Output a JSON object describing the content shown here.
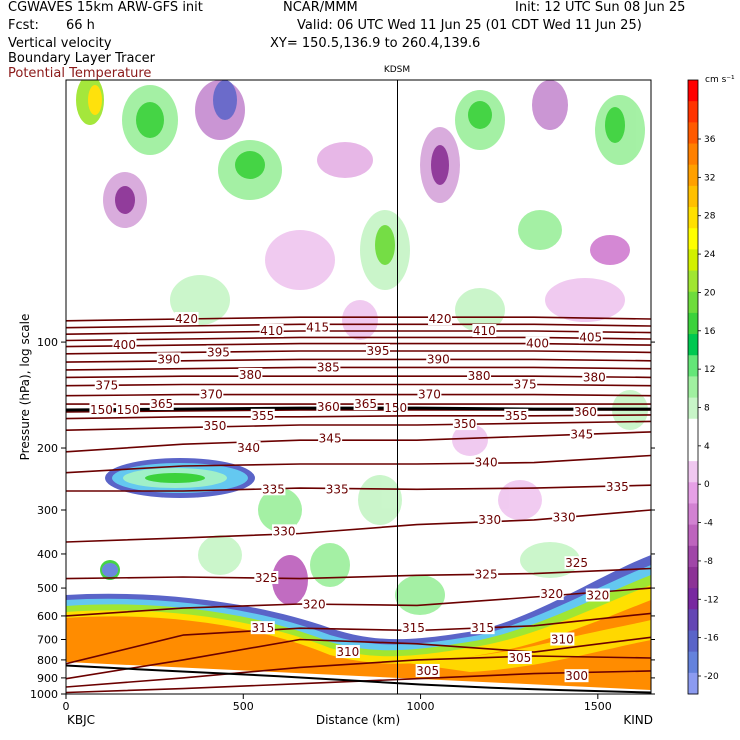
{
  "header": {
    "model": "CGWAVES 15km ARW-GFS init",
    "org": "NCAR/MMM",
    "init": "Init: 12 UTC Sun 08 Jun 25",
    "fcst_label": "Fcst:",
    "fcst_value": "66 h",
    "valid": "Valid: 06 UTC Wed 11 Jun 25 (01 CDT Wed 11 Jun 25)",
    "field1": "Vertical velocity",
    "xy": "XY= 150.5,136.9 to 260.4,139.6",
    "field2": "Boundary Layer Tracer",
    "field3": "Potential Temperature"
  },
  "colors": {
    "theta": "#6b0000",
    "bl_tracer": "#ff8c00",
    "header_red": "#8b1a1a"
  },
  "chart_data": {
    "type": "heatmap",
    "xlabel": "Distance (km)",
    "ylabel": "Pressure (hPa), log scale",
    "xlim": [
      0,
      1650
    ],
    "ylim": [
      1000,
      18
    ],
    "log_y": true,
    "x_ticks": [
      0,
      500,
      1000,
      1500
    ],
    "y_ticks": [
      100,
      200,
      300,
      400,
      500,
      600,
      700,
      800,
      900,
      1000
    ],
    "station_left": "KBJC",
    "station_right": "KIND",
    "station_mid": "KDSM",
    "station_mid_x": 935,
    "colorbar": {
      "unit": "cm s⁻¹",
      "labels": [
        "36",
        "32",
        "28",
        "24",
        "20",
        "16",
        "12",
        "8",
        "4",
        "0",
        "-4",
        "-8",
        "-12",
        "-16",
        "-20"
      ],
      "colors": [
        "#ff0000",
        "#ff3300",
        "#ff5a00",
        "#ff8000",
        "#ffa000",
        "#ffc000",
        "#ffe000",
        "#ffff00",
        "#d2f000",
        "#a0e632",
        "#6edc3c",
        "#3cd23c",
        "#00c850",
        "#64e678",
        "#a0f0a0",
        "#c8f5c8",
        "#ffffff",
        "#ffffff",
        "#f0c8f0",
        "#e6a0e6",
        "#d282d2",
        "#be64be",
        "#a046a8",
        "#8c3296",
        "#7828a0",
        "#6446b4",
        "#5a64c8",
        "#6482dc",
        "#8c9bf0"
      ]
    },
    "isentropes": [
      {
        "theta": 300,
        "p": [
          990,
          965,
          935,
          905,
          875,
          860
        ]
      },
      {
        "theta": 305,
        "p": [
          955,
          900,
          840,
          800,
          780,
          790
        ]
      },
      {
        "theta": 310,
        "p": [
          905,
          800,
          700,
          720,
          760,
          690
        ]
      },
      {
        "theta": 315,
        "p": [
          820,
          680,
          650,
          660,
          640,
          590
        ]
      },
      {
        "theta": 320,
        "p": [
          600,
          570,
          555,
          560,
          530,
          500
        ]
      },
      {
        "theta": 325,
        "p": [
          470,
          465,
          470,
          460,
          455,
          440
        ]
      },
      {
        "theta": 330,
        "p": [
          370,
          360,
          350,
          330,
          320,
          300
        ]
      },
      {
        "theta": 335,
        "p": [
          265,
          265,
          260,
          262,
          260,
          255
        ]
      },
      {
        "theta": 340,
        "p": [
          235,
          225,
          222,
          222,
          220,
          210
        ]
      },
      {
        "theta": 345,
        "p": [
          205,
          195,
          190,
          190,
          185,
          180
        ]
      },
      {
        "theta": 350,
        "p": [
          178,
          175,
          172,
          172,
          170,
          168
        ]
      },
      {
        "theta": 355,
        "p": [
          165,
          163,
          163,
          162,
          162,
          161
        ]
      },
      {
        "theta": 360,
        "p": [
          158,
          157,
          156,
          156,
          156,
          156
        ]
      },
      {
        "theta": 365,
        "p": [
          150,
          150,
          150,
          150,
          150,
          150
        ]
      },
      {
        "theta": 370,
        "p": [
          142,
          141,
          141,
          141,
          141,
          142
        ]
      },
      {
        "theta": 375,
        "p": [
          133,
          132,
          132,
          132,
          132,
          133
        ]
      },
      {
        "theta": 380,
        "p": [
          126,
          125,
          125,
          125,
          125,
          126
        ]
      },
      {
        "theta": 385,
        "p": [
          120,
          119,
          118,
          118,
          118,
          119
        ]
      },
      {
        "theta": 390,
        "p": [
          114,
          113,
          112,
          112,
          112,
          113
        ]
      },
      {
        "theta": 395,
        "p": [
          108,
          107,
          106,
          106,
          106,
          107
        ]
      },
      {
        "theta": 400,
        "p": [
          103,
          102,
          101,
          101,
          101,
          102
        ]
      },
      {
        "theta": 405,
        "p": [
          99,
          98,
          97,
          97,
          97,
          98
        ]
      },
      {
        "theta": 410,
        "p": [
          95,
          94,
          93,
          93,
          93,
          94
        ]
      },
      {
        "theta": 415,
        "p": [
          91,
          90,
          89,
          89,
          89,
          90
        ]
      },
      {
        "theta": 420,
        "p": [
          87,
          86,
          85,
          85,
          85,
          86
        ]
      }
    ],
    "isentrope_x": [
      0,
      330,
      660,
      990,
      1320,
      1650
    ],
    "theta_labels": [
      {
        "text": "420",
        "x": 340,
        "p": 86
      },
      {
        "text": "420",
        "x": 1055,
        "p": 86
      },
      {
        "text": "410",
        "x": 580,
        "p": 93
      },
      {
        "text": "415",
        "x": 710,
        "p": 91
      },
      {
        "text": "410",
        "x": 1180,
        "p": 93
      },
      {
        "text": "405",
        "x": 1480,
        "p": 97
      },
      {
        "text": "400",
        "x": 165,
        "p": 102
      },
      {
        "text": "400",
        "x": 1330,
        "p": 101
      },
      {
        "text": "390",
        "x": 290,
        "p": 112
      },
      {
        "text": "395",
        "x": 430,
        "p": 107
      },
      {
        "text": "395",
        "x": 880,
        "p": 106
      },
      {
        "text": "390",
        "x": 1050,
        "p": 112
      },
      {
        "text": "380",
        "x": 520,
        "p": 124
      },
      {
        "text": "385",
        "x": 740,
        "p": 118
      },
      {
        "text": "380",
        "x": 1165,
        "p": 125
      },
      {
        "text": "375",
        "x": 1295,
        "p": 132
      },
      {
        "text": "380",
        "x": 1490,
        "p": 126
      },
      {
        "text": "375",
        "x": 115,
        "p": 133
      },
      {
        "text": "370",
        "x": 410,
        "p": 141
      },
      {
        "text": "370",
        "x": 1025,
        "p": 141
      },
      {
        "text": "365",
        "x": 270,
        "p": 150
      },
      {
        "text": "360",
        "x": 740,
        "p": 153
      },
      {
        "text": "365",
        "x": 845,
        "p": 150
      },
      {
        "text": "355",
        "x": 555,
        "p": 162
      },
      {
        "text": "355",
        "x": 1270,
        "p": 162
      },
      {
        "text": "360",
        "x": 1465,
        "p": 158
      },
      {
        "text": "350",
        "x": 420,
        "p": 173
      },
      {
        "text": "350",
        "x": 1125,
        "p": 171
      },
      {
        "text": "345",
        "x": 745,
        "p": 188
      },
      {
        "text": "345",
        "x": 1455,
        "p": 183
      },
      {
        "text": "340",
        "x": 515,
        "p": 200
      },
      {
        "text": "340",
        "x": 1185,
        "p": 220
      },
      {
        "text": "335",
        "x": 585,
        "p": 262
      },
      {
        "text": "335",
        "x": 765,
        "p": 262
      },
      {
        "text": "335",
        "x": 1555,
        "p": 258
      },
      {
        "text": "330",
        "x": 615,
        "p": 345
      },
      {
        "text": "330",
        "x": 1195,
        "p": 320
      },
      {
        "text": "330",
        "x": 1405,
        "p": 315
      },
      {
        "text": "325",
        "x": 565,
        "p": 468
      },
      {
        "text": "325",
        "x": 1185,
        "p": 458
      },
      {
        "text": "325",
        "x": 1440,
        "p": 425
      },
      {
        "text": "320",
        "x": 700,
        "p": 557
      },
      {
        "text": "320",
        "x": 1370,
        "p": 520
      },
      {
        "text": "320",
        "x": 1500,
        "p": 525
      },
      {
        "text": "315",
        "x": 555,
        "p": 650
      },
      {
        "text": "315",
        "x": 980,
        "p": 650
      },
      {
        "text": "315",
        "x": 1175,
        "p": 650
      },
      {
        "text": "310",
        "x": 795,
        "p": 760
      },
      {
        "text": "310",
        "x": 1400,
        "p": 700
      },
      {
        "text": "305",
        "x": 1020,
        "p": 860
      },
      {
        "text": "305",
        "x": 1280,
        "p": 790
      },
      {
        "text": "300",
        "x": 1440,
        "p": 890
      },
      {
        "text": "150",
        "x": 100,
        "p": 156
      },
      {
        "text": "150",
        "x": 175,
        "p": 156
      },
      {
        "text": "150",
        "x": 930,
        "p": 154
      }
    ],
    "tropopause": {
      "x": [
        0,
        330,
        660,
        990,
        1320,
        1650
      ],
      "p": [
        156,
        155,
        154,
        154,
        155,
        155
      ]
    },
    "terrain": {
      "x": [
        0,
        200,
        400,
        600,
        800,
        1000,
        1200,
        1400,
        1650
      ],
      "p": [
        830,
        850,
        870,
        890,
        915,
        940,
        960,
        975,
        990
      ]
    }
  }
}
